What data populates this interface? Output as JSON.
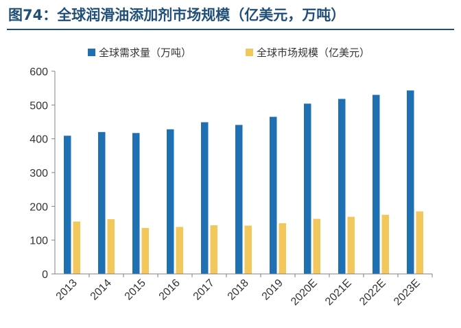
{
  "header": {
    "title": "图74：全球润滑油添加剂市场规模（亿美元，万吨）"
  },
  "colors": {
    "title": "#1f4e79",
    "series_demand": "#1f6fb3",
    "series_market": "#f2c75c",
    "axis": "#7f7f7f"
  },
  "chart_data": {
    "type": "bar",
    "categories": [
      "2013",
      "2014",
      "2015",
      "2016",
      "2017",
      "2018",
      "2019",
      "2020E",
      "2021E",
      "2022E",
      "2023E"
    ],
    "series": [
      {
        "name": "全球需求量（万吨）",
        "values": [
          409,
          420,
          417,
          428,
          449,
          441,
          465,
          504,
          518,
          530,
          543
        ]
      },
      {
        "name": "全球市场规模（亿美元）",
        "values": [
          155,
          162,
          136,
          139,
          144,
          143,
          150,
          163,
          169,
          175,
          185
        ]
      }
    ],
    "yticks": [
      "0",
      "100",
      "200",
      "300",
      "400",
      "500",
      "600"
    ],
    "ylim": [
      0,
      600
    ],
    "legend_position": "top",
    "grid": false
  }
}
